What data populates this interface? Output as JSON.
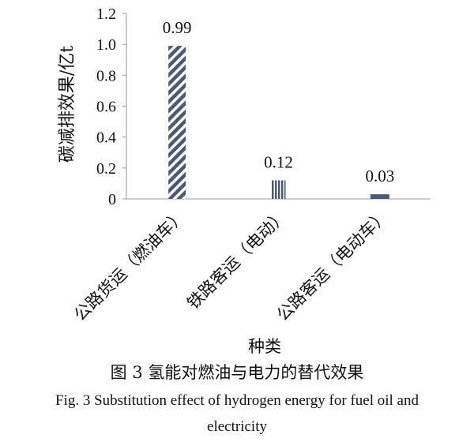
{
  "chart_data": {
    "type": "bar",
    "categories": [
      "公路货运（燃油车）",
      "铁路客运（电动）",
      "公路客运（电动车）"
    ],
    "values": [
      0.99,
      0.12,
      0.03
    ],
    "data_labels": [
      "0.99",
      "0.12",
      "0.03"
    ],
    "title": "",
    "xlabel": "种类",
    "ylabel": "碳减排效果/亿t",
    "ylim": [
      0,
      1.2
    ],
    "yticks": [
      "0",
      "0.2",
      "0.4",
      "0.6",
      "0.8",
      "1.0",
      "1.2"
    ],
    "grid": false,
    "legend": "none",
    "colors": {
      "bar": "#4a5a75",
      "axis": "#999999",
      "text": "#111111"
    }
  },
  "caption": {
    "cn": "图 3  氢能对燃油与电力的替代效果",
    "en_line1": "Fig. 3  Substitution effect of hydrogen energy for fuel oil and",
    "en_line2": "electricity"
  }
}
